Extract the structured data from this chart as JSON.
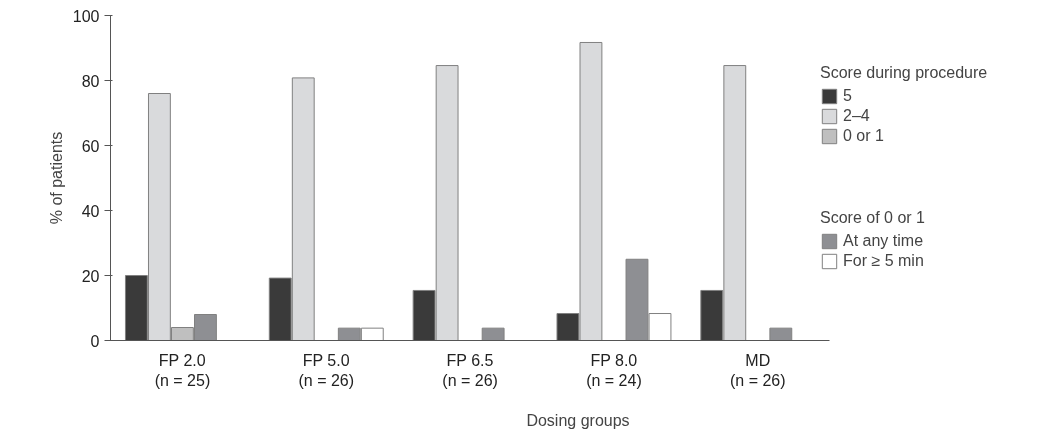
{
  "chart_data": {
    "type": "bar",
    "xlabel": "Dosing groups",
    "ylabel": "% of patients",
    "categories": [
      "FP 2.0\n(n = 25)",
      "FP 5.0\n(n = 26)",
      "FP 6.5\n(n = 26)",
      "FP 8.0\n(n = 24)",
      "MD\n(n = 26)"
    ],
    "series": [
      {
        "name": "5",
        "color": "#3a3a3a",
        "values": [
          20,
          19.2,
          15.4,
          8.3,
          15.4
        ]
      },
      {
        "name": "2–4",
        "color": "#d9dadc",
        "values": [
          76,
          80.8,
          84.6,
          91.7,
          84.6
        ]
      },
      {
        "name": "0 or 1",
        "color": "#bfbfbf",
        "values": [
          4,
          null,
          null,
          null,
          null
        ]
      },
      {
        "name": "At any time",
        "color": "#8e8f93",
        "values": [
          8,
          3.8,
          3.8,
          25,
          3.8
        ]
      },
      {
        "name": "For ≥ 5 min",
        "color": "#ffffff",
        "values": [
          null,
          3.8,
          null,
          8.3,
          null
        ]
      }
    ],
    "legend_title": "Score during procedure",
    "annotations": [
      "Score of 0 or 1"
    ],
    "ylim": [
      0,
      100
    ],
    "yticks": [
      0,
      20,
      40,
      60,
      80,
      100
    ],
    "grid": false,
    "legend": "right"
  }
}
